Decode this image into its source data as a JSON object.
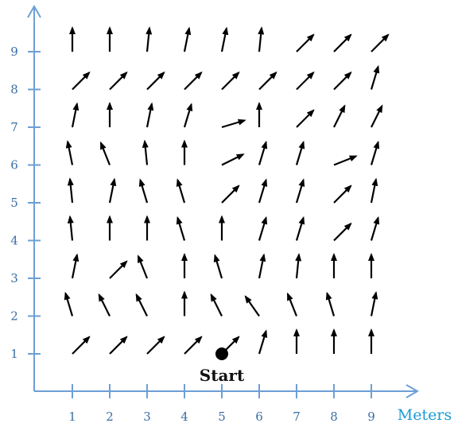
{
  "chart_data": {
    "type": "vector-field",
    "xlabel": "Meters",
    "ylabel": "",
    "xlim": [
      0,
      9.9
    ],
    "ylim": [
      0,
      9.6
    ],
    "x_ticks": [
      1,
      2,
      3,
      4,
      5,
      6,
      7,
      8,
      9
    ],
    "y_ticks": [
      1,
      2,
      3,
      4,
      5,
      6,
      7,
      8,
      9
    ],
    "axis_color": "#6d9fd6",
    "label_color": "#3a6ea5",
    "arrow_color": "#000000",
    "start": {
      "x": 5,
      "y": 1,
      "label": "Start"
    },
    "vectors": [
      {
        "row": 1,
        "dirs": [
          [
            1,
            1
          ],
          [
            1,
            1
          ],
          [
            1,
            1
          ],
          [
            1,
            1
          ],
          [
            1,
            1
          ],
          [
            0.3,
            1
          ],
          [
            0,
            1
          ],
          [
            0,
            1
          ],
          [
            0,
            1
          ]
        ]
      },
      {
        "row": 2,
        "dirs": [
          [
            -0.3,
            1
          ],
          [
            -0.5,
            1
          ],
          [
            -0.5,
            1
          ],
          [
            0,
            1
          ],
          [
            -0.5,
            1
          ],
          [
            -0.7,
            1
          ],
          [
            -0.4,
            1
          ],
          [
            -0.3,
            1
          ],
          [
            0.2,
            1
          ]
        ]
      },
      {
        "row": 3,
        "dirs": [
          [
            0.2,
            1
          ],
          [
            1,
            1
          ],
          [
            -0.4,
            1
          ],
          [
            0,
            1
          ],
          [
            -0.3,
            1
          ],
          [
            0.2,
            1
          ],
          [
            0.1,
            1
          ],
          [
            0,
            1
          ],
          [
            0,
            1
          ]
        ]
      },
      {
        "row": 4,
        "dirs": [
          [
            -0.1,
            1
          ],
          [
            0,
            1
          ],
          [
            0,
            1
          ],
          [
            -0.3,
            1
          ],
          [
            0,
            1
          ],
          [
            0.3,
            1
          ],
          [
            0.3,
            1
          ],
          [
            1,
            1
          ],
          [
            0.3,
            1
          ]
        ]
      },
      {
        "row": 5,
        "dirs": [
          [
            -0.1,
            1
          ],
          [
            0.2,
            1
          ],
          [
            -0.3,
            1
          ],
          [
            -0.3,
            1
          ],
          [
            1,
            1
          ],
          [
            0.3,
            1
          ],
          [
            0.3,
            1
          ],
          [
            1,
            1
          ],
          [
            0.2,
            1
          ]
        ]
      },
      {
        "row": 6,
        "dirs": [
          [
            -0.2,
            1
          ],
          [
            -0.4,
            1
          ],
          [
            -0.1,
            1
          ],
          [
            0,
            1
          ],
          [
            1,
            0.5
          ],
          [
            0.3,
            1
          ],
          [
            0.3,
            1
          ],
          [
            1,
            0.4
          ],
          [
            0.3,
            1
          ]
        ]
      },
      {
        "row": 7,
        "dirs": [
          [
            0.2,
            1
          ],
          [
            0,
            1
          ],
          [
            0.2,
            1
          ],
          [
            0.3,
            1
          ],
          [
            1,
            0.3
          ],
          [
            0,
            1
          ],
          [
            1,
            1
          ],
          [
            0.5,
            1
          ],
          [
            0.5,
            1
          ]
        ]
      },
      {
        "row": 8,
        "dirs": [
          [
            1,
            1
          ],
          [
            1,
            1
          ],
          [
            1,
            1
          ],
          [
            1,
            1
          ],
          [
            1,
            1
          ],
          [
            1,
            1
          ],
          [
            1,
            1
          ],
          [
            1,
            1
          ],
          [
            0.3,
            1
          ]
        ]
      },
      {
        "row": 9,
        "dirs": [
          [
            0,
            1
          ],
          [
            0,
            1
          ],
          [
            0.1,
            1
          ],
          [
            0.2,
            1
          ],
          [
            0.2,
            1
          ],
          [
            0.1,
            1
          ],
          [
            1,
            1
          ],
          [
            1,
            1
          ],
          [
            1,
            1
          ]
        ]
      }
    ]
  }
}
